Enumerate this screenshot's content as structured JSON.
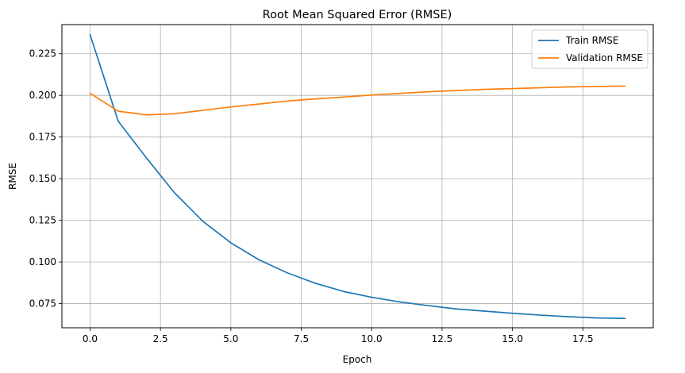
{
  "chart_data": {
    "type": "line",
    "title": "Root Mean Squared Error (RMSE)",
    "xlabel": "Epoch",
    "ylabel": "RMSE",
    "xlim": [
      -1,
      20
    ],
    "ylim": [
      0.0605,
      0.2425
    ],
    "x_ticks": [
      0.0,
      2.5,
      5.0,
      7.5,
      10.0,
      12.5,
      15.0,
      17.5
    ],
    "x_tick_labels": [
      "0.0",
      "2.5",
      "5.0",
      "7.5",
      "10.0",
      "12.5",
      "15.0",
      "17.5"
    ],
    "y_ticks": [
      0.075,
      0.1,
      0.125,
      0.15,
      0.175,
      0.2,
      0.225
    ],
    "y_tick_labels": [
      "0.075",
      "0.100",
      "0.125",
      "0.150",
      "0.175",
      "0.200",
      "0.225"
    ],
    "grid": true,
    "legend_position": "top-right",
    "x": [
      0,
      1,
      2,
      3,
      4,
      5,
      6,
      7,
      8,
      9,
      10,
      11,
      12,
      13,
      14,
      15,
      16,
      17,
      18,
      19
    ],
    "series": [
      {
        "name": "Train RMSE",
        "color": "#1f77b4",
        "values": [
          0.2365,
          0.1845,
          0.1625,
          0.1415,
          0.1245,
          0.1115,
          0.1013,
          0.0935,
          0.0872,
          0.0823,
          0.0788,
          0.076,
          0.0738,
          0.0718,
          0.0705,
          0.0692,
          0.0681,
          0.0671,
          0.0664,
          0.0661
        ]
      },
      {
        "name": "Validation RMSE",
        "color": "#ff7f0e",
        "values": [
          0.2013,
          0.1905,
          0.1883,
          0.189,
          0.191,
          0.1931,
          0.1948,
          0.1966,
          0.1979,
          0.199,
          0.2002,
          0.2012,
          0.2022,
          0.2029,
          0.2036,
          0.2041,
          0.2046,
          0.2051,
          0.2053,
          0.2056
        ]
      }
    ]
  }
}
